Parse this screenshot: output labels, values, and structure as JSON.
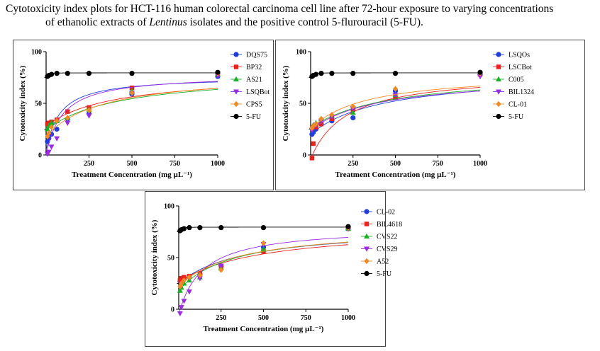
{
  "caption": {
    "line1": "Cytotoxicity index plots for HCT-116 human colorectal carcinoma cell line after 72-hour exposure to varying concentrations",
    "line2_pre": "of ethanolic extracts of ",
    "line2_italic": "Lentinus",
    "line2_post": " isolates and the positive control 5-flurouracil (5-FU)."
  },
  "colors": {
    "blue": "#1f3fd6",
    "red": "#e8221c",
    "green": "#18b027",
    "purple": "#9a2be0",
    "orange": "#f08a24",
    "black": "#000000"
  },
  "chart_data": [
    {
      "type": "scatter",
      "xlabel": "Treatment Concentration (mg µL⁻¹)",
      "ylabel": "Cytotoxicity index (%)",
      "xlim": [
        0,
        1000
      ],
      "ylim": [
        0,
        100
      ],
      "xticks": [
        "250",
        "500",
        "750",
        "1000"
      ],
      "yticks": [
        "0",
        "50",
        "100"
      ],
      "series": [
        {
          "name": "DQS75",
          "marker": "circle",
          "color": "blue",
          "x": [
            7.8,
            15.6,
            31.25,
            62.5,
            125,
            250,
            500,
            1000
          ],
          "y": [
            13,
            16,
            20,
            25,
            35,
            40,
            59,
            76
          ],
          "curve": [
            4,
            76,
            80
          ]
        },
        {
          "name": "BP32",
          "marker": "square",
          "color": "red",
          "x": [
            7.8,
            15.6,
            31.25,
            62.5,
            125,
            250,
            500,
            1000
          ],
          "y": [
            30,
            31,
            32,
            34,
            42,
            46,
            65,
            78
          ],
          "curve": [
            28,
            79,
            400
          ]
        },
        {
          "name": "AS21",
          "marker": "triangle-up",
          "color": "green",
          "x": [
            7.8,
            15.6,
            31.25,
            62.5,
            125,
            250,
            500,
            1000
          ],
          "y": [
            25,
            28,
            31,
            33,
            36,
            44,
            62,
            78
          ],
          "curve": [
            24,
            80,
            420
          ]
        },
        {
          "name": "LSQBot",
          "marker": "triangle-down",
          "color": "purple",
          "x": [
            7.8,
            15.6,
            31.25,
            62.5,
            125,
            250,
            500,
            1000
          ],
          "y": [
            1,
            3,
            8,
            16,
            31,
            38,
            60,
            77
          ],
          "curve": [
            0,
            78,
            95
          ]
        },
        {
          "name": "CPS5",
          "marker": "diamond",
          "color": "orange",
          "x": [
            7.8,
            15.6,
            31.25,
            62.5,
            125,
            250,
            500,
            1000
          ],
          "y": [
            18,
            21,
            27,
            33,
            36,
            43,
            60,
            79
          ],
          "curve": [
            18,
            80,
            330
          ]
        },
        {
          "name": "5-FU",
          "marker": "circle",
          "color": "black",
          "x": [
            7.8,
            15.6,
            31.25,
            62.5,
            125,
            250,
            500,
            1000
          ],
          "y": [
            76,
            77,
            78,
            79,
            79,
            79,
            79,
            80
          ],
          "curve": [
            75,
            79.5,
            3
          ]
        }
      ]
    },
    {
      "type": "scatter",
      "xlabel": "Treatment Concentration (mg µL⁻¹)",
      "ylabel": "Cytotoxicity index (%)",
      "xlim": [
        0,
        1000
      ],
      "ylim": [
        0,
        100
      ],
      "xticks": [
        "250",
        "500",
        "750",
        "1000"
      ],
      "yticks": [
        "0",
        "50",
        "100"
      ],
      "series": [
        {
          "name": "LSQOs",
          "marker": "circle",
          "color": "blue",
          "x": [
            7.8,
            15.6,
            31.25,
            62.5,
            125,
            250,
            500,
            1000
          ],
          "y": [
            20,
            22,
            25,
            30,
            33,
            36,
            62,
            78
          ],
          "curve": [
            20,
            80,
            430
          ]
        },
        {
          "name": "LSCBot",
          "marker": "square",
          "color": "red",
          "x": [
            7.8,
            15.6,
            31.25,
            62.5,
            125,
            250,
            500,
            1000
          ],
          "y": [
            -3,
            11,
            27,
            30,
            35,
            44,
            56,
            78
          ],
          "curve": [
            -4,
            80,
            210
          ]
        },
        {
          "name": "C005",
          "marker": "triangle-up",
          "color": "green",
          "x": [
            7.8,
            15.6,
            31.25,
            62.5,
            125,
            250,
            500,
            1000
          ],
          "y": [
            27,
            29,
            31,
            35,
            38,
            41,
            58,
            79
          ],
          "curve": [
            26,
            80,
            460
          ]
        },
        {
          "name": "BIL1324",
          "marker": "triangle-down",
          "color": "purple",
          "x": [
            7.8,
            15.6,
            31.25,
            62.5,
            125,
            250,
            500,
            1000
          ],
          "y": [
            24,
            26,
            29,
            33,
            37,
            45,
            58,
            76
          ],
          "curve": [
            24,
            77,
            400
          ]
        },
        {
          "name": "CL-01",
          "marker": "diamond",
          "color": "orange",
          "x": [
            7.8,
            15.6,
            31.25,
            62.5,
            125,
            250,
            500,
            1000
          ],
          "y": [
            26,
            28,
            30,
            35,
            39,
            47,
            64,
            79
          ],
          "curve": [
            25,
            80,
            320
          ]
        },
        {
          "name": "5-FU",
          "marker": "circle",
          "color": "black",
          "x": [
            7.8,
            15.6,
            31.25,
            62.5,
            125,
            250,
            500,
            1000
          ],
          "y": [
            76,
            77,
            78,
            79,
            79,
            79,
            79,
            80
          ],
          "curve": [
            75,
            79.5,
            3
          ]
        }
      ]
    },
    {
      "type": "scatter",
      "xlabel": "Treatment Concentration (mg µL⁻¹)",
      "ylabel": "Cytotoxicity index (%)",
      "xlim": [
        0,
        1000
      ],
      "ylim": [
        0,
        100
      ],
      "xticks": [
        "250",
        "500",
        "750",
        "1000"
      ],
      "yticks": [
        "0",
        "50",
        "100"
      ],
      "series": [
        {
          "name": "CL-02",
          "marker": "circle",
          "color": "blue",
          "x": [
            7.8,
            15.6,
            31.25,
            62.5,
            125,
            250,
            500,
            1000
          ],
          "y": [
            27,
            28,
            29,
            31,
            34,
            42,
            60,
            78
          ],
          "curve": [
            25,
            80,
            390
          ]
        },
        {
          "name": "BIL4618",
          "marker": "square",
          "color": "red",
          "x": [
            7.8,
            15.6,
            31.25,
            62.5,
            125,
            250,
            500,
            1000
          ],
          "y": [
            28,
            30,
            31,
            32,
            35,
            40,
            56,
            78
          ],
          "curve": [
            26,
            80,
            480
          ]
        },
        {
          "name": "CVS22",
          "marker": "triangle-up",
          "color": "green",
          "x": [
            7.8,
            15.6,
            31.25,
            62.5,
            125,
            250,
            500,
            1000
          ],
          "y": [
            18,
            21,
            25,
            28,
            31,
            40,
            58,
            78
          ],
          "curve": [
            18,
            80,
            320
          ]
        },
        {
          "name": "CVS29",
          "marker": "triangle-down",
          "color": "purple",
          "x": [
            7.8,
            15.6,
            31.25,
            62.5,
            125,
            250,
            500,
            1000
          ],
          "y": [
            -4,
            2,
            8,
            17,
            30,
            42,
            63,
            78
          ],
          "curve": [
            -5,
            80,
            140
          ]
        },
        {
          "name": "A52",
          "marker": "diamond",
          "color": "orange",
          "x": [
            7.8,
            15.6,
            31.25,
            62.5,
            125,
            250,
            500,
            1000
          ],
          "y": [
            22,
            25,
            28,
            31,
            33,
            38,
            64,
            79
          ],
          "curve": [
            22,
            80,
            350
          ]
        },
        {
          "name": "5-FU",
          "marker": "circle",
          "color": "black",
          "x": [
            7.8,
            15.6,
            31.25,
            62.5,
            125,
            250,
            500,
            1000
          ],
          "y": [
            76,
            77,
            78,
            79,
            79,
            79,
            79,
            80
          ],
          "curve": [
            75,
            79.5,
            3
          ]
        }
      ]
    }
  ]
}
